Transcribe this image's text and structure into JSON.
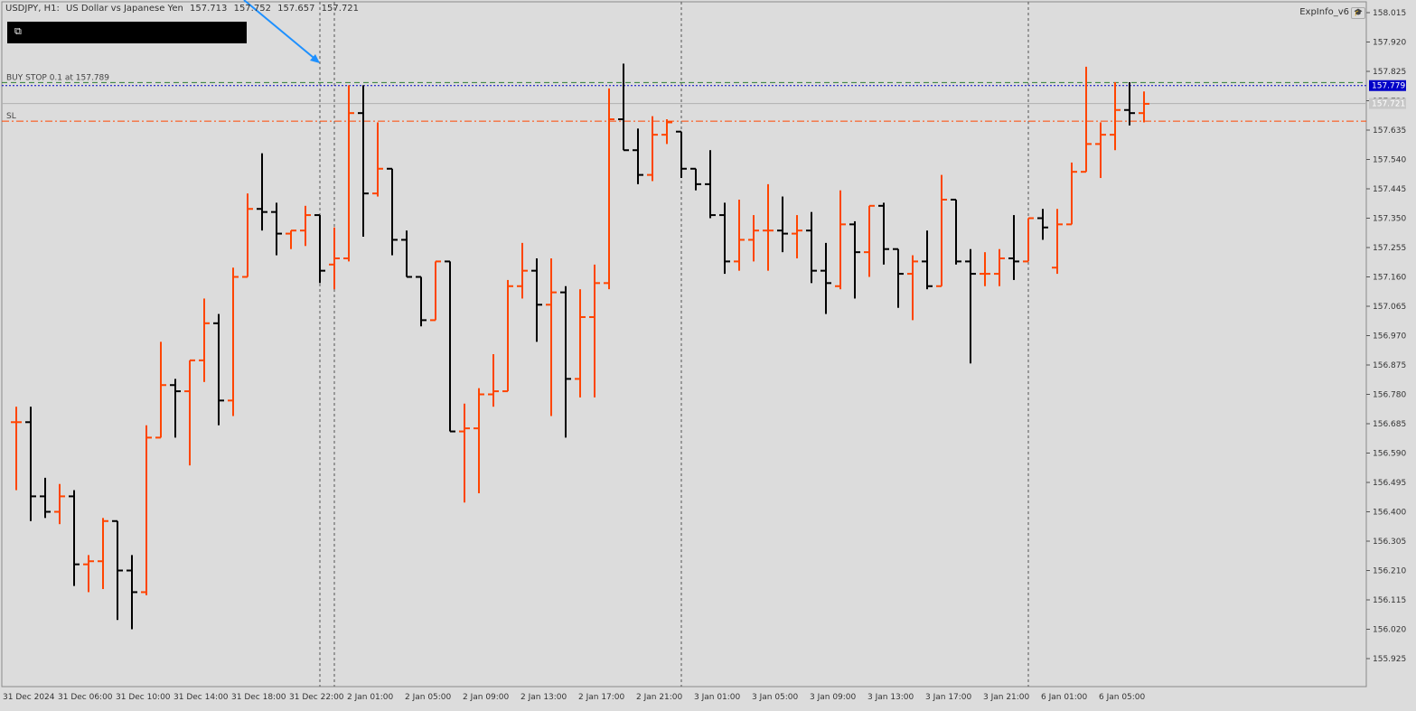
{
  "header": {
    "symbol": "USDJPY, H1:",
    "description": "US Dollar vs Japanese Yen",
    "ohlc": [
      "157.713",
      "157.752",
      "157.657",
      "157.721"
    ]
  },
  "indicator": {
    "label": "ExpInfo_v6"
  },
  "order_lines": {
    "buy_stop": {
      "label": "BUY STOP 0.1 at 157.789",
      "price": 157.789,
      "color": "#2e7d32"
    },
    "sl": {
      "label": "SL",
      "price": 157.664,
      "color": "#ff4500"
    },
    "ask": {
      "price": 157.779,
      "label": "157.779",
      "color": "#0000c8"
    },
    "bid": {
      "price": 157.721,
      "label": "157.721",
      "color": "#b0b0b0"
    }
  },
  "colors": {
    "bull": "#ff4500",
    "bear": "#000000",
    "background": "#dcdcdc",
    "grid": "#555555"
  },
  "chart_data": {
    "type": "ohlc-bar",
    "title": "USDJPY, H1",
    "ylim": [
      155.9,
      158.05
    ],
    "y_ticks": [
      "158.015",
      "157.920",
      "157.825",
      "157.730",
      "157.635",
      "157.540",
      "157.445",
      "157.350",
      "157.255",
      "157.160",
      "157.065",
      "156.970",
      "156.875",
      "156.780",
      "156.685",
      "156.590",
      "156.495",
      "156.400",
      "156.305",
      "156.210",
      "156.115",
      "156.020",
      "155.925"
    ],
    "x_ticks": [
      "31 Dec 2024",
      "31 Dec 06:00",
      "31 Dec 10:00",
      "31 Dec 14:00",
      "31 Dec 18:00",
      "31 Dec 22:00",
      "2 Jan 01:00",
      "2 Jan 05:00",
      "2 Jan 09:00",
      "2 Jan 13:00",
      "2 Jan 17:00",
      "2 Jan 21:00",
      "3 Jan 01:00",
      "3 Jan 05:00",
      "3 Jan 09:00",
      "3 Jan 13:00",
      "3 Jan 17:00",
      "3 Jan 21:00",
      "6 Jan 01:00",
      "6 Jan 05:00"
    ],
    "session_separators": [
      "31 Dec 22:00",
      "2 Jan 00:00",
      "3 Jan 00:00",
      "6 Jan 00:00"
    ],
    "bars": [
      [
        156.69,
        156.74,
        156.47,
        156.69
      ],
      [
        156.69,
        156.74,
        156.37,
        156.45
      ],
      [
        156.45,
        156.51,
        156.38,
        156.4
      ],
      [
        156.4,
        156.49,
        156.36,
        156.45
      ],
      [
        156.45,
        156.47,
        156.16,
        156.23
      ],
      [
        156.23,
        156.26,
        156.14,
        156.24
      ],
      [
        156.24,
        156.38,
        156.15,
        156.37
      ],
      [
        156.37,
        156.37,
        156.05,
        156.21
      ],
      [
        156.21,
        156.26,
        156.02,
        156.14
      ],
      [
        156.14,
        156.68,
        156.13,
        156.64
      ],
      [
        156.64,
        156.95,
        156.64,
        156.81
      ],
      [
        156.81,
        156.83,
        156.64,
        156.79
      ],
      [
        156.79,
        156.87,
        156.55,
        156.89
      ],
      [
        156.89,
        157.09,
        156.82,
        157.01
      ],
      [
        157.01,
        157.04,
        156.68,
        156.76
      ],
      [
        156.76,
        157.19,
        156.71,
        157.16
      ],
      [
        157.16,
        157.43,
        157.16,
        157.38
      ],
      [
        157.38,
        157.56,
        157.31,
        157.37
      ],
      [
        157.37,
        157.4,
        157.23,
        157.3
      ],
      [
        157.3,
        157.31,
        157.25,
        157.31
      ],
      [
        157.31,
        157.39,
        157.26,
        157.36
      ],
      [
        157.36,
        157.35,
        157.14,
        157.18
      ],
      [
        157.2,
        157.32,
        157.12,
        157.22
      ],
      [
        157.22,
        157.78,
        157.21,
        157.69
      ],
      [
        157.69,
        157.78,
        157.29,
        157.43
      ],
      [
        157.43,
        157.66,
        157.42,
        157.51
      ],
      [
        157.51,
        157.5,
        157.23,
        157.28
      ],
      [
        157.28,
        157.31,
        157.17,
        157.16
      ],
      [
        157.16,
        157.16,
        157.0,
        157.02
      ],
      [
        157.02,
        157.21,
        157.02,
        157.21
      ],
      [
        157.21,
        157.21,
        156.67,
        156.66
      ],
      [
        156.66,
        156.75,
        156.43,
        156.67
      ],
      [
        156.67,
        156.8,
        156.46,
        156.78
      ],
      [
        156.78,
        156.91,
        156.74,
        156.79
      ],
      [
        156.79,
        157.15,
        156.79,
        157.13
      ],
      [
        157.13,
        157.27,
        157.09,
        157.18
      ],
      [
        157.18,
        157.22,
        156.95,
        157.07
      ],
      [
        157.07,
        157.22,
        156.71,
        157.11
      ],
      [
        157.11,
        157.13,
        156.64,
        156.83
      ],
      [
        156.83,
        157.12,
        156.77,
        157.03
      ],
      [
        157.03,
        157.2,
        156.77,
        157.14
      ],
      [
        157.14,
        157.77,
        157.12,
        157.67
      ],
      [
        157.67,
        157.85,
        157.57,
        157.57
      ],
      [
        157.57,
        157.64,
        157.46,
        157.49
      ],
      [
        157.49,
        157.68,
        157.47,
        157.62
      ],
      [
        157.62,
        157.67,
        157.59,
        157.66
      ],
      [
        157.63,
        157.63,
        157.48,
        157.51
      ],
      [
        157.51,
        157.5,
        157.44,
        157.46
      ],
      [
        157.46,
        157.57,
        157.35,
        157.36
      ],
      [
        157.36,
        157.4,
        157.17,
        157.21
      ],
      [
        157.21,
        157.41,
        157.18,
        157.28
      ],
      [
        157.28,
        157.36,
        157.21,
        157.31
      ],
      [
        157.31,
        157.46,
        157.18,
        157.31
      ],
      [
        157.31,
        157.42,
        157.24,
        157.3
      ],
      [
        157.3,
        157.36,
        157.22,
        157.31
      ],
      [
        157.31,
        157.37,
        157.14,
        157.18
      ],
      [
        157.18,
        157.27,
        157.04,
        157.14
      ],
      [
        157.13,
        157.44,
        157.12,
        157.33
      ],
      [
        157.33,
        157.34,
        157.09,
        157.24
      ],
      [
        157.24,
        157.39,
        157.16,
        157.39
      ],
      [
        157.39,
        157.4,
        157.2,
        157.25
      ],
      [
        157.25,
        157.25,
        157.06,
        157.17
      ],
      [
        157.17,
        157.23,
        157.02,
        157.21
      ],
      [
        157.21,
        157.31,
        157.12,
        157.13
      ],
      [
        157.13,
        157.49,
        157.13,
        157.41
      ],
      [
        157.41,
        157.4,
        157.2,
        157.21
      ],
      [
        157.21,
        157.25,
        156.88,
        157.17
      ],
      [
        157.17,
        157.24,
        157.13,
        157.17
      ],
      [
        157.17,
        157.25,
        157.13,
        157.22
      ],
      [
        157.22,
        157.36,
        157.15,
        157.21
      ],
      [
        157.21,
        157.35,
        157.31,
        157.35
      ],
      [
        157.35,
        157.38,
        157.28,
        157.32
      ],
      [
        157.19,
        157.38,
        157.17,
        157.33
      ],
      [
        157.33,
        157.53,
        157.33,
        157.5
      ],
      [
        157.5,
        157.84,
        157.59,
        157.59
      ],
      [
        157.59,
        157.66,
        157.48,
        157.62
      ],
      [
        157.62,
        157.79,
        157.57,
        157.7
      ],
      [
        157.7,
        157.79,
        157.65,
        157.69
      ],
      [
        157.69,
        157.76,
        157.66,
        157.72
      ]
    ]
  }
}
